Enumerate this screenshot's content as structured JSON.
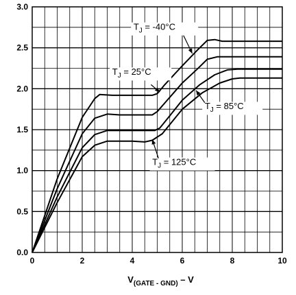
{
  "chart_data": {
    "type": "line",
    "xlabel": {
      "main": "V",
      "subscript": "(GATE - GND)",
      "unit": " – V"
    },
    "ylabel": "",
    "xlim": [
      0,
      10
    ],
    "ylim": [
      0,
      3.0
    ],
    "x_ticks": [
      "0",
      "2",
      "4",
      "6",
      "8",
      "10"
    ],
    "y_ticks": [
      "0.0",
      "0.5",
      "1.0",
      "1.5",
      "2.0",
      "2.5",
      "3.0"
    ],
    "grid": true,
    "series": [
      {
        "name": "T_J = -40°C",
        "label": {
          "prefix": "T",
          "sub": "J",
          "value": " = -40°C"
        },
        "points": [
          [
            0,
            0
          ],
          [
            1,
            0.9
          ],
          [
            2,
            1.65
          ],
          [
            2.5,
            1.88
          ],
          [
            2.7,
            1.93
          ],
          [
            3.2,
            1.92
          ],
          [
            4,
            1.92
          ],
          [
            4.8,
            1.92
          ],
          [
            5.0,
            1.94
          ],
          [
            5.3,
            2.05
          ],
          [
            6,
            2.28
          ],
          [
            6.6,
            2.47
          ],
          [
            7.0,
            2.59
          ],
          [
            7.3,
            2.6
          ],
          [
            7.6,
            2.58
          ],
          [
            8,
            2.58
          ],
          [
            10,
            2.58
          ]
        ]
      },
      {
        "name": "T_J = 25°C",
        "label": {
          "prefix": "T",
          "sub": "J",
          "value": " = 25°C"
        },
        "points": [
          [
            0,
            0
          ],
          [
            1,
            0.78
          ],
          [
            2,
            1.45
          ],
          [
            2.5,
            1.64
          ],
          [
            3.0,
            1.69
          ],
          [
            3.5,
            1.68
          ],
          [
            4,
            1.68
          ],
          [
            4.8,
            1.68
          ],
          [
            5.0,
            1.72
          ],
          [
            5.4,
            1.86
          ],
          [
            6,
            2.07
          ],
          [
            6.6,
            2.24
          ],
          [
            7.0,
            2.36
          ],
          [
            7.4,
            2.39
          ],
          [
            8,
            2.39
          ],
          [
            10,
            2.39
          ]
        ]
      },
      {
        "name": "T_J = 85°C",
        "label": {
          "prefix": "T",
          "sub": "J",
          "value": " = 85°C"
        },
        "points": [
          [
            0,
            0
          ],
          [
            1,
            0.68
          ],
          [
            2,
            1.28
          ],
          [
            2.5,
            1.44
          ],
          [
            3.0,
            1.49
          ],
          [
            4,
            1.49
          ],
          [
            4.9,
            1.49
          ],
          [
            5.1,
            1.52
          ],
          [
            5.5,
            1.67
          ],
          [
            6,
            1.86
          ],
          [
            6.7,
            2.05
          ],
          [
            7.3,
            2.17
          ],
          [
            7.8,
            2.23
          ],
          [
            8.2,
            2.24
          ],
          [
            10,
            2.24
          ]
        ]
      },
      {
        "name": "T_J = 125°C",
        "label": {
          "prefix": "T",
          "sub": "J",
          "value": " = 125°C"
        },
        "points": [
          [
            0,
            0
          ],
          [
            1,
            0.61
          ],
          [
            2,
            1.17
          ],
          [
            2.5,
            1.31
          ],
          [
            3.0,
            1.36
          ],
          [
            4,
            1.36
          ],
          [
            4.5,
            1.35
          ],
          [
            4.8,
            1.37
          ],
          [
            5.2,
            1.45
          ],
          [
            5.6,
            1.6
          ],
          [
            6,
            1.75
          ],
          [
            6.8,
            1.95
          ],
          [
            7.5,
            2.07
          ],
          [
            8,
            2.12
          ],
          [
            8.3,
            2.13
          ],
          [
            10,
            2.13
          ]
        ]
      }
    ]
  }
}
